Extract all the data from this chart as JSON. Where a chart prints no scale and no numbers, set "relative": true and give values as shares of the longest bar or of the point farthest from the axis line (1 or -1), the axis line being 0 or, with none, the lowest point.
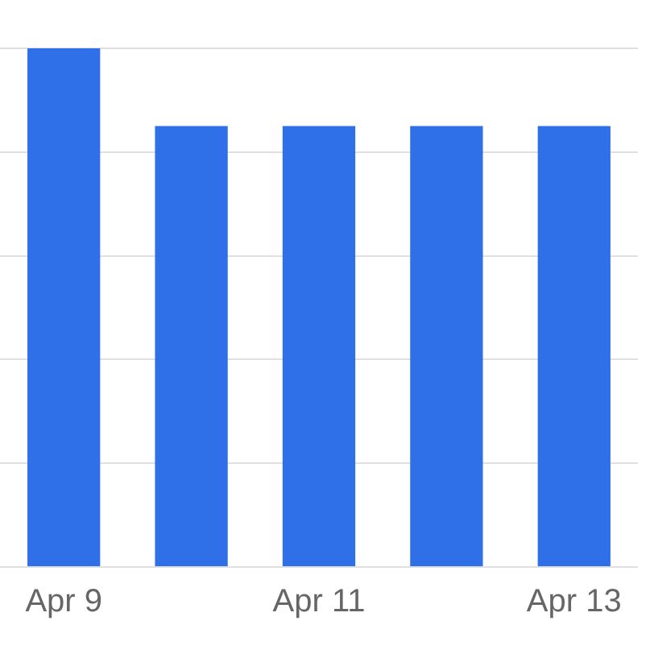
{
  "chart_data": {
    "type": "bar",
    "categories": [
      "Apr 9",
      null,
      "Apr 11",
      null,
      "Apr 13"
    ],
    "values": [
      1,
      0.85,
      0.85,
      0.85,
      0.85
    ],
    "color": "#2f6fe8",
    "relative": true,
    "grid": "y",
    "legend": false
  }
}
